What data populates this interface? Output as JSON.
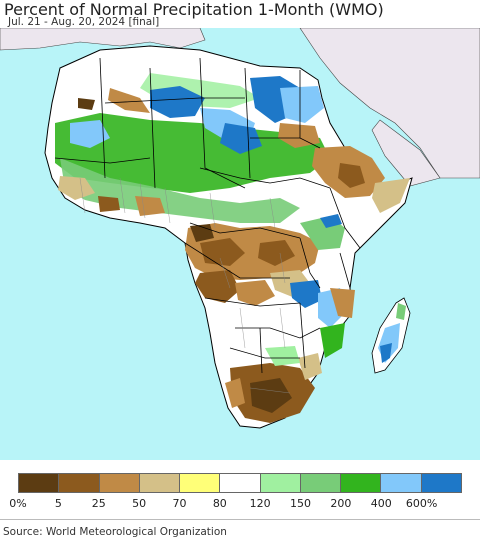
{
  "header": {
    "title": "Percent of Normal Precipitation 1-Month (WMO)",
    "subtitle": "Jul. 21 - Aug. 20, 2024 [final]"
  },
  "map": {
    "region": "Africa",
    "ocean_color": "#b8f4f8",
    "land_outside_color": "#ece6ee",
    "border_color": "#000000"
  },
  "legend": {
    "swatches": [
      {
        "color": "#5c3c12"
      },
      {
        "color": "#8c5a1e"
      },
      {
        "color": "#c08a46"
      },
      {
        "color": "#d4c088"
      },
      {
        "color": "#ffff78"
      },
      {
        "color": "#ffffff"
      },
      {
        "color": "#a0f0a0"
      },
      {
        "color": "#78cc78"
      },
      {
        "color": "#32b41e"
      },
      {
        "color": "#82c8fa"
      },
      {
        "color": "#1e78c8"
      }
    ],
    "ticks": [
      "0%",
      "5",
      "25",
      "50",
      "70",
      "80",
      "120",
      "150",
      "200",
      "400",
      "600%"
    ]
  },
  "footer": {
    "source": "Source: World Meteorological Organization"
  }
}
